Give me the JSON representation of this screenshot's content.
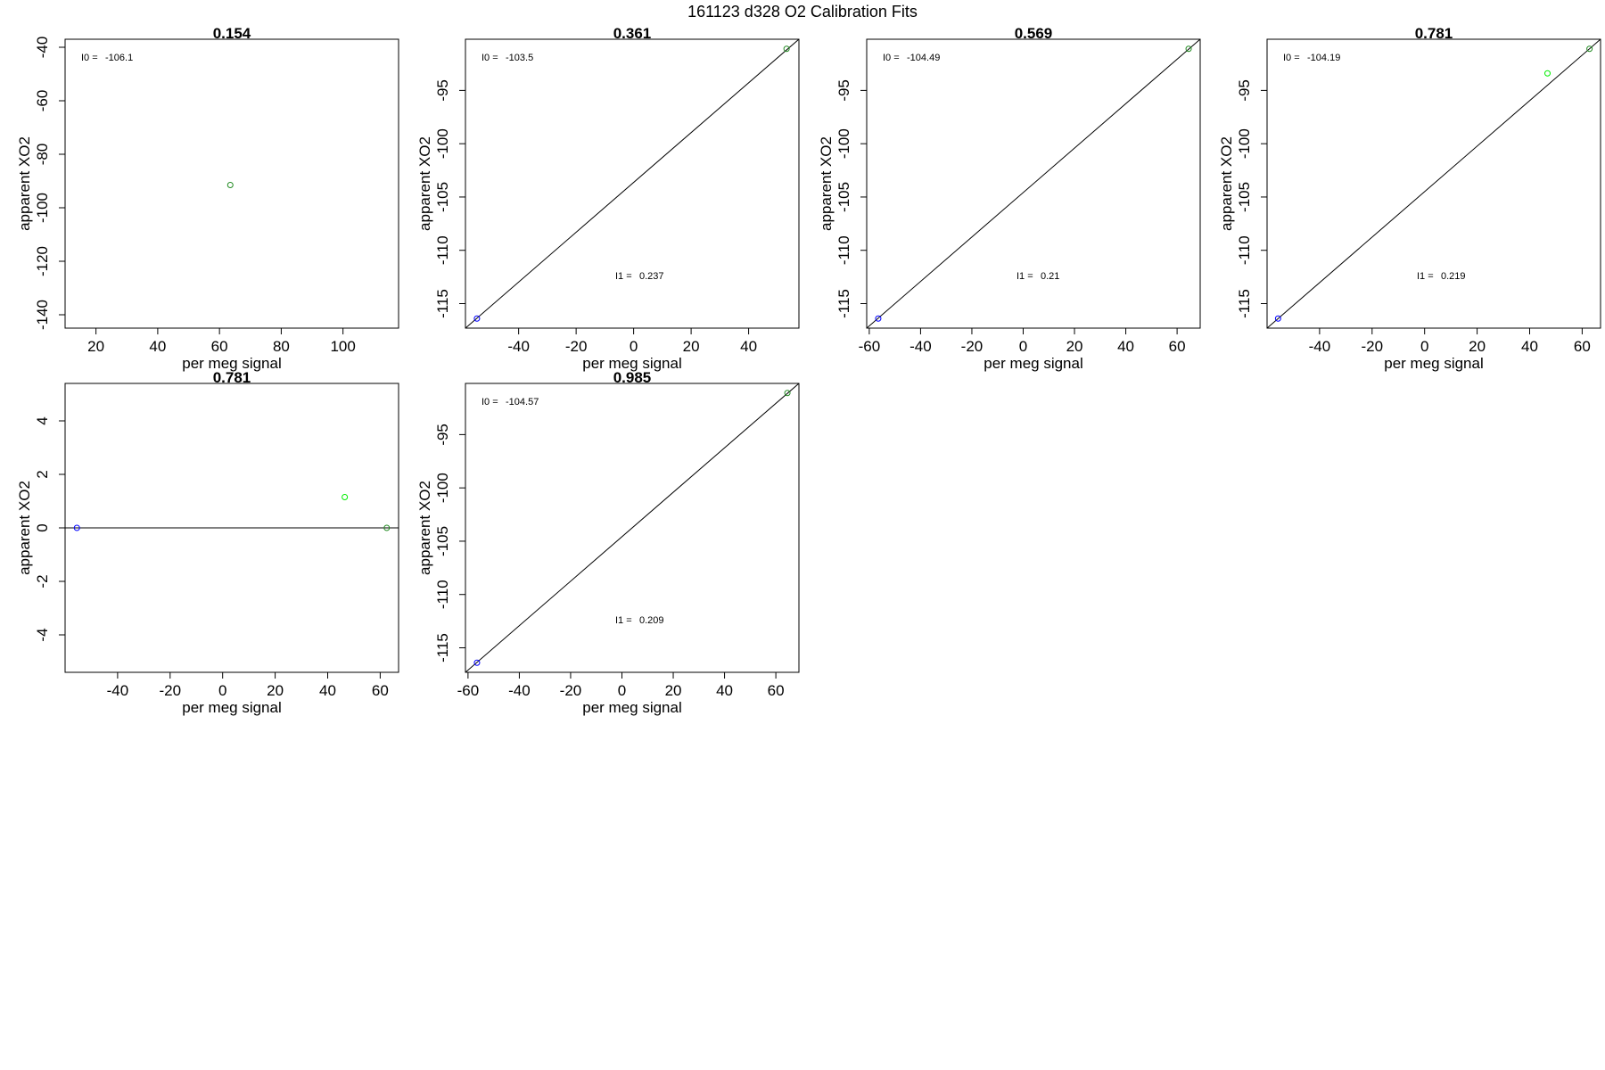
{
  "figure": {
    "title": "161123   d328   O2 Calibration Fits"
  },
  "chart_data": [
    {
      "type": "scatter",
      "title": "0.154",
      "xlabel": "per meg signal",
      "ylabel": "apparent XO2",
      "xlim": [
        10,
        118
      ],
      "ylim": [
        -145,
        -37
      ],
      "xticks": [
        20,
        40,
        60,
        80,
        100
      ],
      "yticks": [
        -140,
        -120,
        -100,
        -80,
        -60,
        -40
      ],
      "points": [
        {
          "x": 63.5,
          "y": -91.5,
          "color": "#228b22"
        }
      ],
      "annotations": [
        {
          "label": "I0 =",
          "value": "-106.1",
          "pos": "top-left"
        }
      ]
    },
    {
      "type": "scatter",
      "title": "0.361",
      "xlabel": "per meg signal",
      "ylabel": "apparent XO2",
      "xlim": [
        -58.5,
        57.5
      ],
      "ylim": [
        -117.3,
        -90.2
      ],
      "xticks": [
        -40,
        -20,
        0,
        20,
        40
      ],
      "yticks": [
        -115,
        -110,
        -105,
        -100,
        -95
      ],
      "fit_line": {
        "from": [
          -58.5,
          -117.3
        ],
        "to": [
          57.5,
          -90.2
        ]
      },
      "points": [
        {
          "x": -54.5,
          "y": -116.4,
          "color": "#0000ff"
        },
        {
          "x": 53.2,
          "y": -91.1,
          "color": "#228b22"
        }
      ],
      "annotations": [
        {
          "label": "I0 =",
          "value": "-103.5",
          "pos": "top-left"
        },
        {
          "label": "I1 =",
          "value": "0.237",
          "pos": "lower-right"
        }
      ]
    },
    {
      "type": "scatter",
      "title": "0.569",
      "xlabel": "per meg signal",
      "ylabel": "apparent XO2",
      "xlim": [
        -61,
        69
      ],
      "ylim": [
        -117.3,
        -90.2
      ],
      "xticks": [
        -60,
        -40,
        -20,
        0,
        20,
        40,
        60
      ],
      "yticks": [
        -115,
        -110,
        -105,
        -100,
        -95
      ],
      "fit_line": {
        "from": [
          -61,
          -117.3
        ],
        "to": [
          69,
          -90.2
        ]
      },
      "points": [
        {
          "x": -56.5,
          "y": -116.4,
          "color": "#0000ff"
        },
        {
          "x": 64.5,
          "y": -91.1,
          "color": "#228b22"
        }
      ],
      "annotations": [
        {
          "label": "I0 =",
          "value": "-104.49",
          "pos": "top-left"
        },
        {
          "label": "I1 =",
          "value": "0.21",
          "pos": "lower-right"
        }
      ]
    },
    {
      "type": "scatter",
      "title": "0.781",
      "xlabel": "per meg signal",
      "ylabel": "apparent XO2",
      "xlim": [
        -60,
        67
      ],
      "ylim": [
        -117.3,
        -90.2
      ],
      "xticks": [
        -40,
        -20,
        0,
        20,
        40,
        60
      ],
      "yticks": [
        -115,
        -110,
        -105,
        -100,
        -95
      ],
      "fit_line": {
        "from": [
          -60,
          -117.3
        ],
        "to": [
          67,
          -90.2
        ]
      },
      "points": [
        {
          "x": -55.8,
          "y": -116.4,
          "color": "#0000ff"
        },
        {
          "x": 46.8,
          "y": -93.4,
          "color": "#00ee00"
        },
        {
          "x": 62.8,
          "y": -91.1,
          "color": "#228b22"
        }
      ],
      "annotations": [
        {
          "label": "I0 =",
          "value": "-104.19",
          "pos": "top-left"
        },
        {
          "label": "I1 =",
          "value": "0.219",
          "pos": "lower-right"
        }
      ]
    },
    {
      "type": "scatter",
      "title": "0.781",
      "xlabel": "per meg signal",
      "ylabel": "apparent XO2",
      "xlim": [
        -60,
        67
      ],
      "ylim": [
        -5.4,
        5.4
      ],
      "xticks": [
        -40,
        -20,
        0,
        20,
        40,
        60
      ],
      "yticks": [
        -4,
        -2,
        0,
        2,
        4
      ],
      "fit_line": {
        "from": [
          -60,
          0
        ],
        "to": [
          67,
          0
        ]
      },
      "points": [
        {
          "x": -55.5,
          "y": 0.0,
          "color": "#0000ff"
        },
        {
          "x": 46.5,
          "y": 1.15,
          "color": "#00ee00"
        },
        {
          "x": 62.5,
          "y": 0.0,
          "color": "#228b22"
        }
      ],
      "annotations": []
    },
    {
      "type": "scatter",
      "title": "0.985",
      "xlabel": "per meg signal",
      "ylabel": "apparent XO2",
      "xlim": [
        -61,
        69
      ],
      "ylim": [
        -117.3,
        -90.2
      ],
      "xticks": [
        -60,
        -40,
        -20,
        0,
        20,
        40,
        60
      ],
      "yticks": [
        -115,
        -110,
        -105,
        -100,
        -95
      ],
      "fit_line": {
        "from": [
          -61,
          -117.3
        ],
        "to": [
          69,
          -90.2
        ]
      },
      "points": [
        {
          "x": -56.5,
          "y": -116.4,
          "color": "#0000ff"
        },
        {
          "x": 64.5,
          "y": -91.1,
          "color": "#228b22"
        }
      ],
      "annotations": [
        {
          "label": "I0 =",
          "value": "-104.57",
          "pos": "top-left"
        },
        {
          "label": "I1 =",
          "value": "0.209",
          "pos": "lower-right"
        }
      ]
    }
  ]
}
